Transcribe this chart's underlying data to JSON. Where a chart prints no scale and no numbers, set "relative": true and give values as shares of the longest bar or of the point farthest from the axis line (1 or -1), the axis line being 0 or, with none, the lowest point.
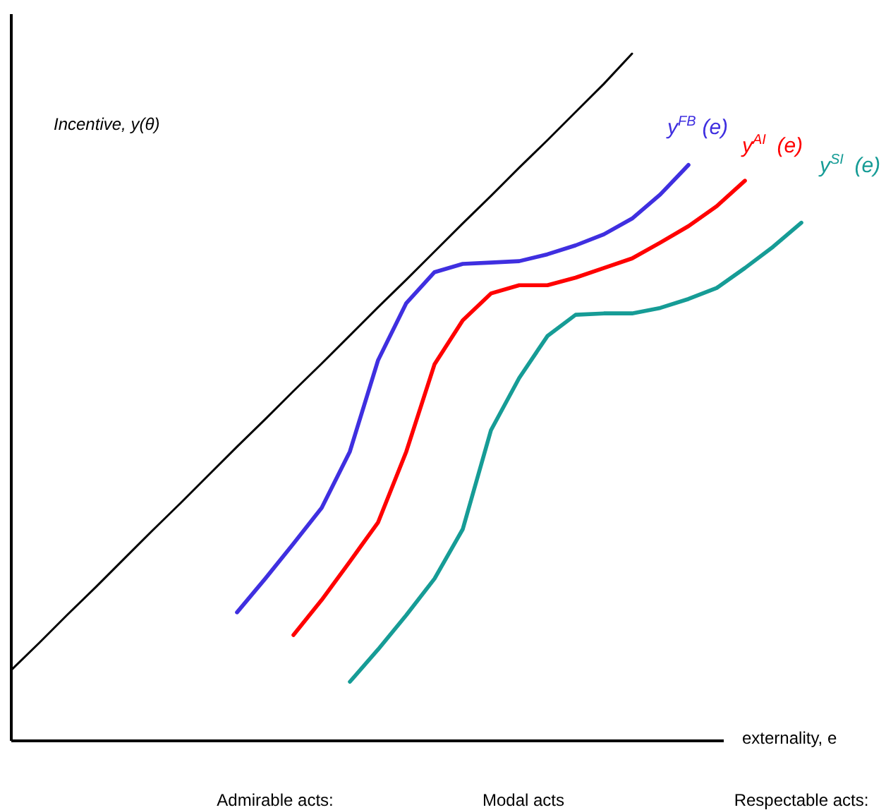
{
  "chart_data": {
    "type": "line",
    "relative": true,
    "ylabel": "Incentive, y(θ)",
    "xlabel": "externality, e",
    "categories": [
      null,
      null,
      null,
      null,
      null,
      null,
      null,
      null,
      null,
      null,
      null,
      null,
      null,
      null,
      null,
      null,
      null,
      null,
      null,
      null,
      null,
      null,
      null,
      null,
      null,
      null,
      null,
      null,
      null,
      null
    ],
    "series": [
      {
        "color": "#000000",
        "values": [
          0.103,
          0.143,
          0.184,
          0.224,
          0.265,
          0.306,
          0.346,
          0.387,
          0.428,
          0.468,
          0.509,
          0.549,
          0.59,
          0.631,
          0.671,
          0.712,
          0.753,
          0.793,
          0.834,
          0.874,
          0.915,
          0.956,
          1.0,
          null,
          null,
          null,
          null,
          null,
          null,
          null
        ]
      },
      {
        "name": "y$^{FB}$ (e)",
        "color": "#3f2fe0",
        "values": [
          null,
          null,
          null,
          null,
          null,
          null,
          null,
          null,
          0.187,
          0.236,
          0.287,
          0.339,
          0.421,
          0.554,
          0.637,
          0.682,
          0.694,
          0.696,
          0.698,
          0.708,
          0.721,
          0.737,
          0.76,
          0.795,
          0.838,
          null,
          null,
          null,
          null,
          null
        ]
      },
      {
        "name": "y$^{AI}$ (e)",
        "color": "#ff0000",
        "values": [
          null,
          null,
          null,
          null,
          null,
          null,
          null,
          null,
          null,
          null,
          0.154,
          0.205,
          0.261,
          0.318,
          0.421,
          0.548,
          0.612,
          0.651,
          0.663,
          0.663,
          0.674,
          0.688,
          0.702,
          0.725,
          0.749,
          0.778,
          0.815,
          null,
          null,
          null
        ]
      },
      {
        "name": "y$^{SI}$ (e)",
        "color": "#169c96",
        "values": [
          null,
          null,
          null,
          null,
          null,
          null,
          null,
          null,
          null,
          null,
          null,
          null,
          0.086,
          0.133,
          0.183,
          0.236,
          0.308,
          0.452,
          0.528,
          0.589,
          0.62,
          0.622,
          0.622,
          0.63,
          0.643,
          0.659,
          0.688,
          0.719,
          0.754,
          null
        ]
      }
    ],
    "annotations": [
      "Admirable acts:",
      "Modal acts",
      "Respectable acts:"
    ],
    "line_style": "solid",
    "marker": "none",
    "grid": false
  }
}
